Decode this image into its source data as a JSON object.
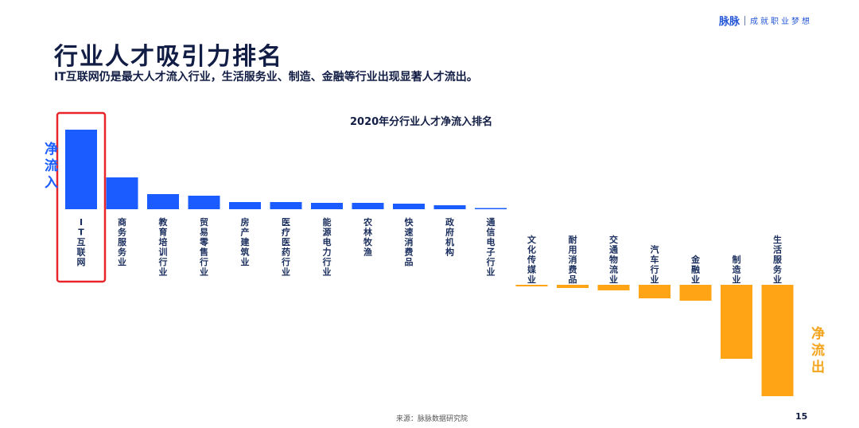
{
  "header": {
    "brand": "脉脉",
    "slogan": "成就职业梦想"
  },
  "title": "行业人才吸引力排名",
  "subtitle": "IT互联网仍是最大人才流入行业，生活服务业、制造、金融等行业出现显著人才流出。",
  "side_labels": {
    "inflow": "净流入",
    "outflow": "净流出"
  },
  "footer": {
    "source": "来源：脉脉数据研究院",
    "page_number": "15"
  },
  "colors": {
    "positive": "#1a5cff",
    "negative": "#ffa414",
    "highlight_box": "#e8262a"
  },
  "chart_data": {
    "type": "bar",
    "title": "2020年分行业人才净流入排名",
    "xlabel": "",
    "ylabel": "",
    "highlighted_category": "IT互联网",
    "categories": [
      "IT互联网",
      "商务服务业",
      "教育培训行业",
      "贸易零售行业",
      "房产建筑业",
      "医疗医药行业",
      "能源电力行业",
      "农林牧渔",
      "快速消费品",
      "政府机构",
      "通信电子行业",
      "文化传媒业",
      "耐用消费品",
      "交通物流业",
      "汽车行业",
      "金融业",
      "制造业",
      "生活服务业"
    ],
    "values": [
      100,
      40,
      19,
      17,
      9,
      9,
      8,
      8,
      7,
      5,
      1,
      -2,
      -4,
      -7,
      -17,
      -20,
      -93,
      -140
    ],
    "ylim": [
      -140,
      100
    ],
    "grid": false,
    "legend": "none"
  }
}
